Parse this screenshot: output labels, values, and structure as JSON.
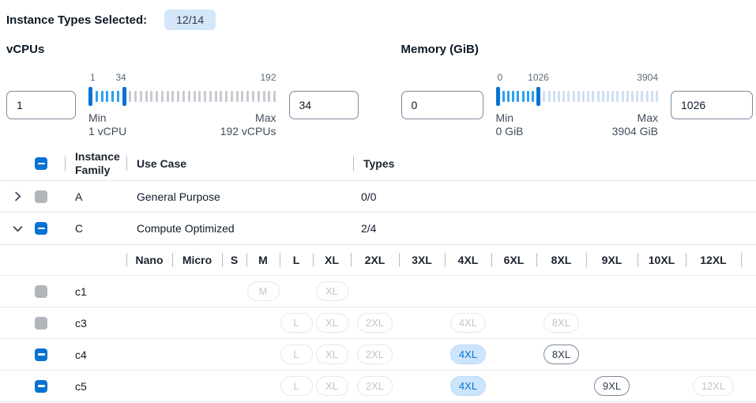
{
  "selection_bar": {
    "label": "Instance Types Selected:",
    "badge": "12/14"
  },
  "filters": {
    "vcpus": {
      "title": "vCPUs",
      "from": "1",
      "to": "34",
      "min": 1,
      "max": 192,
      "tick_count": 35,
      "tick_inactive": "#c7cbd1",
      "scale": [
        "1",
        "34",
        "192"
      ],
      "min_caption": "Min",
      "min_detail": "1 vCPU",
      "max_caption": "Max",
      "max_detail": "192 vCPUs"
    },
    "memory": {
      "title": "Memory (GiB)",
      "from": "0",
      "to": "1026",
      "min": 0,
      "max": 3904,
      "tick_count": 33,
      "tick_inactive": "#cfdff2",
      "scale": [
        "0",
        "1026",
        "3904"
      ],
      "min_caption": "Min",
      "min_detail": "0 GiB",
      "max_caption": "Max",
      "max_detail": "3904 GiB"
    }
  },
  "table": {
    "columns": {
      "family": "Instance Family",
      "use_case": "Use Case",
      "types": "Types"
    },
    "header_checkbox": "indeterminate",
    "families": [
      {
        "name": "A",
        "use_case": "General Purpose",
        "types": "0/0",
        "expanded": false,
        "checkbox": "filled-disabled"
      },
      {
        "name": "C",
        "use_case": "Compute Optimized",
        "types": "2/4",
        "expanded": true,
        "checkbox": "indeterminate"
      }
    ],
    "sizes": [
      "Nano",
      "Micro",
      "S",
      "M",
      "L",
      "XL",
      "2XL",
      "3XL",
      "4XL",
      "6XL",
      "8XL",
      "9XL",
      "10XL",
      "12XL"
    ],
    "instances": [
      {
        "name": "c1",
        "checkbox": "filled-disabled",
        "badges": [
          {
            "size": "M",
            "state": "disabled"
          },
          {
            "size": "XL",
            "state": "disabled"
          }
        ]
      },
      {
        "name": "c3",
        "checkbox": "filled-disabled",
        "badges": [
          {
            "size": "L",
            "state": "disabled"
          },
          {
            "size": "XL",
            "state": "disabled"
          },
          {
            "size": "2XL",
            "state": "disabled"
          },
          {
            "size": "4XL",
            "state": "disabled"
          },
          {
            "size": "8XL",
            "state": "disabled"
          }
        ]
      },
      {
        "name": "c4",
        "checkbox": "indeterminate",
        "badges": [
          {
            "size": "L",
            "state": "disabled"
          },
          {
            "size": "XL",
            "state": "disabled"
          },
          {
            "size": "2XL",
            "state": "disabled"
          },
          {
            "size": "4XL",
            "state": "selected"
          },
          {
            "size": "8XL",
            "state": "enabled"
          }
        ]
      },
      {
        "name": "c5",
        "checkbox": "indeterminate",
        "badges": [
          {
            "size": "L",
            "state": "disabled"
          },
          {
            "size": "XL",
            "state": "disabled"
          },
          {
            "size": "2XL",
            "state": "disabled"
          },
          {
            "size": "4XL",
            "state": "selected"
          },
          {
            "size": "9XL",
            "state": "enabled"
          },
          {
            "size": "12XL",
            "state": "disabled"
          }
        ]
      }
    ]
  },
  "colors": {
    "accent": "#0972d3",
    "tick_active": "#2b9ff2",
    "badge_selected_bg": "#cde5fc",
    "count_badge_bg": "#d3e7f9",
    "disabled_gray": "#b1b6bd",
    "divider": "#b6bec9",
    "row_border": "#e6e9ec"
  }
}
